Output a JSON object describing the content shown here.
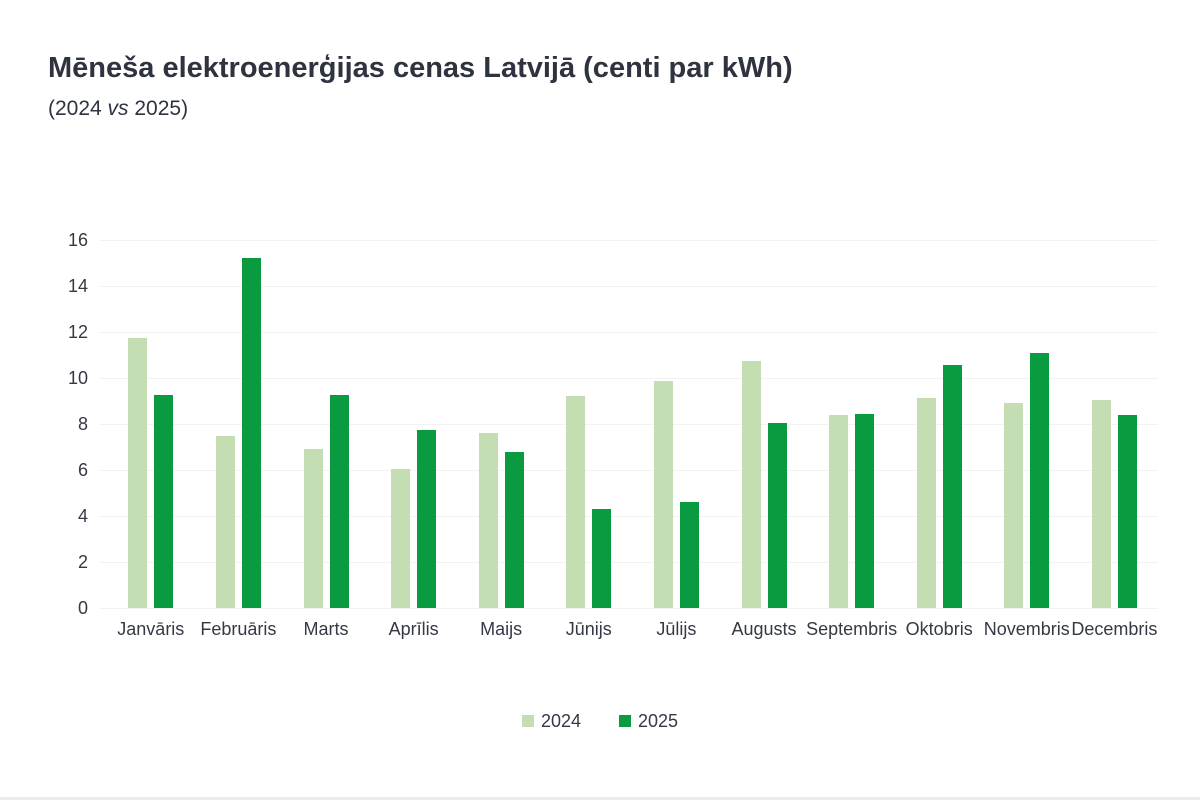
{
  "header": {
    "title": "Mēneša elektroenerģijas cenas Latvijā (centi par kWh)",
    "subtitle_prefix": "(2024 ",
    "subtitle_vs": "vs",
    "subtitle_suffix": " 2025)"
  },
  "colors": {
    "series_2024": "#c4ddb2",
    "series_2025": "#0a9a40",
    "text": "#2e3340",
    "axis_text": "#343945",
    "gridline": "#f2f2f2",
    "background": "#ffffff"
  },
  "legend": {
    "items": [
      {
        "label": "2024",
        "color": "#c4ddb2"
      },
      {
        "label": "2025",
        "color": "#0a9a40"
      }
    ]
  },
  "chart_data": {
    "type": "bar",
    "title": "Mēneša elektroenerģijas cenas Latvijā (centi par kWh)",
    "subtitle": "(2024 vs 2025)",
    "xlabel": "",
    "ylabel": "",
    "unit": "centi par kWh",
    "ylim": [
      0,
      16
    ],
    "yticks": [
      0,
      2,
      4,
      6,
      8,
      10,
      12,
      14,
      16
    ],
    "grid": "horizontal",
    "legend_position": "bottom",
    "categories": [
      "Janvāris",
      "Februāris",
      "Marts",
      "Aprīlis",
      "Maijs",
      "Jūnijs",
      "Jūlijs",
      "Augusts",
      "Septembris",
      "Oktobris",
      "Novembris",
      "Decembris"
    ],
    "series": [
      {
        "name": "2024",
        "color": "#c4ddb2",
        "values": [
          11.75,
          7.5,
          6.9,
          6.05,
          7.6,
          9.2,
          9.85,
          10.75,
          8.4,
          9.15,
          8.9,
          9.05
        ]
      },
      {
        "name": "2025",
        "color": "#0a9a40",
        "values": [
          9.25,
          15.2,
          9.25,
          7.75,
          6.8,
          4.3,
          4.6,
          8.05,
          8.45,
          10.55,
          11.1,
          8.4
        ]
      }
    ]
  }
}
